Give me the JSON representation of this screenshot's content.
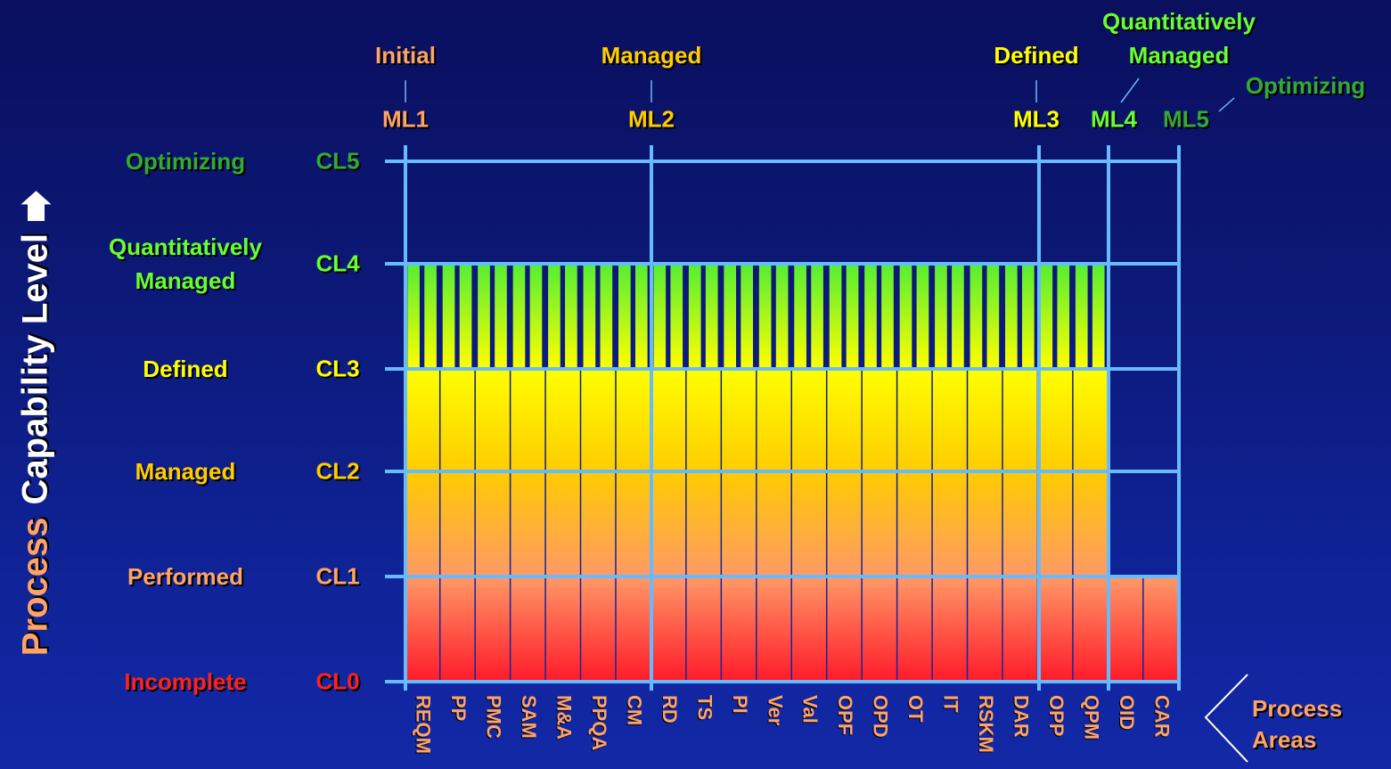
{
  "y_axis_title": {
    "part1": "Process",
    "part2": "Capability Level",
    "part1_color": "#ffa366",
    "part2_color": "#ffffff",
    "icon": "up-arrow-icon"
  },
  "capability_levels": [
    {
      "code": "CL0",
      "name": "Incomplete",
      "color": "#ff2020"
    },
    {
      "code": "CL1",
      "name": "Performed",
      "color": "#ffa366"
    },
    {
      "code": "CL2",
      "name": "Managed",
      "color": "#ffcc00"
    },
    {
      "code": "CL3",
      "name": "Defined",
      "color": "#ffff00"
    },
    {
      "code": "CL4",
      "name": "Quantitatively Managed",
      "color": "#66ff33"
    },
    {
      "code": "CL5",
      "name": "Optimizing",
      "color": "#33aa33"
    }
  ],
  "maturity_levels": [
    {
      "code": "ML1",
      "name": "Initial",
      "color": "#ffa366"
    },
    {
      "code": "ML2",
      "name": "Managed",
      "color": "#ffcc00"
    },
    {
      "code": "ML3",
      "name": "Defined",
      "color": "#ffff00"
    },
    {
      "code": "ML4",
      "name": "Quantitatively Managed",
      "color": "#66ff33"
    },
    {
      "code": "ML5",
      "name": "Optimizing",
      "color": "#33aa33"
    }
  ],
  "process_areas": [
    "REQM",
    "PP",
    "PMC",
    "SAM",
    "M&A",
    "PPQA",
    "CM",
    "RD",
    "TS",
    "PI",
    "Ver",
    "Val",
    "OPF",
    "OPD",
    "OT",
    "IT",
    "RSKM",
    "DAR",
    "OPP",
    "QPM",
    "OID",
    "CAR"
  ],
  "process_areas_label": "Process Areas",
  "colors": {
    "grid": "#66bbff",
    "background": "#0c1875"
  }
}
